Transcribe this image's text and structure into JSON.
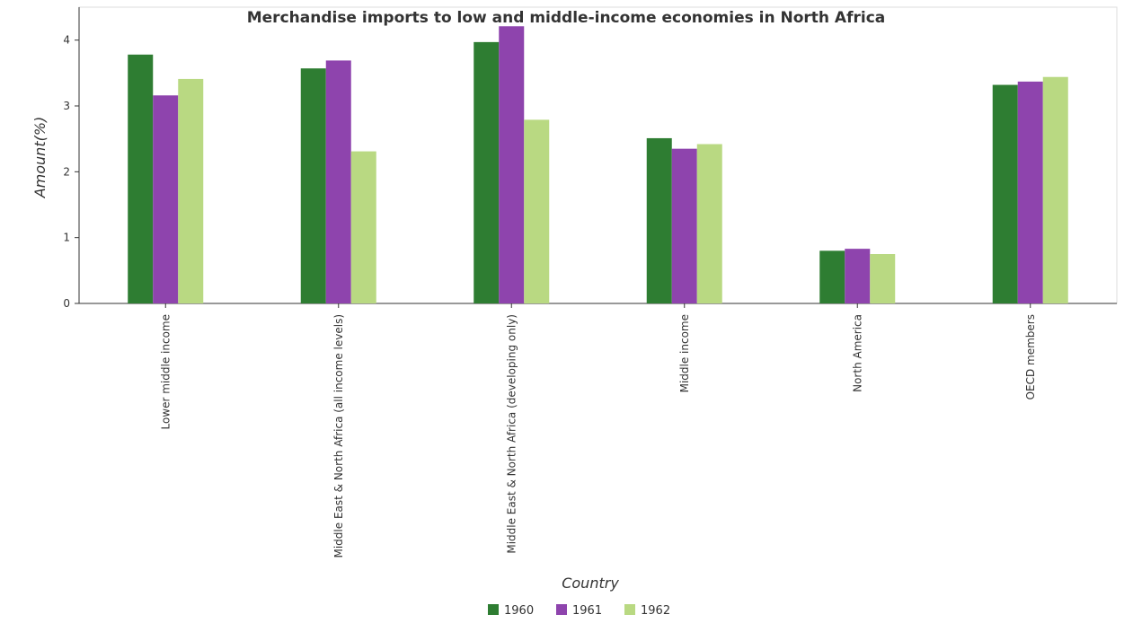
{
  "chart_data": {
    "type": "bar",
    "title": "Merchandise imports to low and middle-income economies in North Africa",
    "xlabel": "Country",
    "ylabel": "Amount(%)",
    "ylim": [
      0,
      4.5
    ],
    "yticks": [
      0,
      1,
      2,
      3,
      4
    ],
    "categories": [
      "Lower middle income",
      "Middle East & North Africa (all income levels)",
      "Middle East & North Africa (developing only)",
      "Middle income",
      "North America",
      "OECD members"
    ],
    "series": [
      {
        "name": "1960",
        "color": "#2e7d32",
        "values": [
          3.78,
          3.57,
          3.97,
          2.51,
          0.8,
          3.32
        ]
      },
      {
        "name": "1961",
        "color": "#8e44ad",
        "values": [
          3.16,
          3.69,
          4.21,
          2.35,
          0.83,
          3.37
        ]
      },
      {
        "name": "1962",
        "color": "#b9d982",
        "values": [
          3.41,
          2.31,
          2.79,
          2.42,
          0.75,
          3.44
        ]
      }
    ],
    "grid": false,
    "legend_position": "bottom-center"
  }
}
